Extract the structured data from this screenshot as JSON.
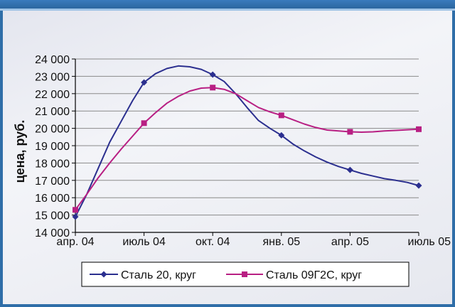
{
  "chart_data": {
    "type": "line",
    "ylabel": "цена, руб.",
    "xlabel": "",
    "title": "",
    "ylim": [
      14000,
      24000
    ],
    "y_ticks": [
      "14 000",
      "15 000",
      "16 000",
      "17 000",
      "18 000",
      "19 000",
      "20 000",
      "21 000",
      "22 000",
      "23 000",
      "24 000"
    ],
    "x_ticks": [
      "апр. 04",
      "июль 04",
      "окт. 04",
      "янв. 05",
      "апр. 05",
      "июль 05"
    ],
    "grid": true,
    "legend_position": "bottom",
    "series": [
      {
        "name": "Сталь 20, круг",
        "color": "#2b2f8f",
        "marker": "diamond",
        "points": [
          {
            "t": 0,
            "v": 14900
          },
          {
            "t": 3,
            "v": 22650
          },
          {
            "t": 6,
            "v": 23100
          },
          {
            "t": 9,
            "v": 19600
          },
          {
            "t": 12,
            "v": 17600
          },
          {
            "t": 15,
            "v": 16700
          }
        ],
        "curve": [
          {
            "t": 0,
            "v": 14900
          },
          {
            "t": 0.5,
            "v": 16200
          },
          {
            "t": 1,
            "v": 17700
          },
          {
            "t": 1.5,
            "v": 19200
          },
          {
            "t": 2,
            "v": 20400
          },
          {
            "t": 2.5,
            "v": 21600
          },
          {
            "t": 3,
            "v": 22650
          },
          {
            "t": 3.5,
            "v": 23150
          },
          {
            "t": 4,
            "v": 23450
          },
          {
            "t": 4.5,
            "v": 23600
          },
          {
            "t": 5,
            "v": 23550
          },
          {
            "t": 5.5,
            "v": 23400
          },
          {
            "t": 6,
            "v": 23100
          },
          {
            "t": 6.5,
            "v": 22700
          },
          {
            "t": 7,
            "v": 22000
          },
          {
            "t": 7.5,
            "v": 21200
          },
          {
            "t": 8,
            "v": 20450
          },
          {
            "t": 8.5,
            "v": 20000
          },
          {
            "t": 9,
            "v": 19600
          },
          {
            "t": 9.5,
            "v": 19100
          },
          {
            "t": 10,
            "v": 18700
          },
          {
            "t": 10.5,
            "v": 18350
          },
          {
            "t": 11,
            "v": 18050
          },
          {
            "t": 11.5,
            "v": 17800
          },
          {
            "t": 12,
            "v": 17600
          },
          {
            "t": 12.5,
            "v": 17400
          },
          {
            "t": 13,
            "v": 17250
          },
          {
            "t": 13.5,
            "v": 17100
          },
          {
            "t": 14,
            "v": 17000
          },
          {
            "t": 14.5,
            "v": 16880
          },
          {
            "t": 15,
            "v": 16700
          }
        ]
      },
      {
        "name": "Сталь 09Г2С, круг",
        "color": "#b81f83",
        "marker": "square",
        "points": [
          {
            "t": 0,
            "v": 15300
          },
          {
            "t": 3,
            "v": 20300
          },
          {
            "t": 6,
            "v": 22350
          },
          {
            "t": 9,
            "v": 20750
          },
          {
            "t": 12,
            "v": 19800
          },
          {
            "t": 15,
            "v": 19950
          }
        ],
        "curve": [
          {
            "t": 0,
            "v": 15300
          },
          {
            "t": 0.5,
            "v": 16200
          },
          {
            "t": 1,
            "v": 17150
          },
          {
            "t": 1.5,
            "v": 18000
          },
          {
            "t": 2,
            "v": 18800
          },
          {
            "t": 2.5,
            "v": 19550
          },
          {
            "t": 3,
            "v": 20300
          },
          {
            "t": 3.5,
            "v": 20900
          },
          {
            "t": 4,
            "v": 21450
          },
          {
            "t": 4.5,
            "v": 21850
          },
          {
            "t": 5,
            "v": 22150
          },
          {
            "t": 5.5,
            "v": 22320
          },
          {
            "t": 6,
            "v": 22350
          },
          {
            "t": 6.5,
            "v": 22250
          },
          {
            "t": 7,
            "v": 22000
          },
          {
            "t": 7.5,
            "v": 21600
          },
          {
            "t": 8,
            "v": 21200
          },
          {
            "t": 8.5,
            "v": 20950
          },
          {
            "t": 9,
            "v": 20750
          },
          {
            "t": 9.5,
            "v": 20500
          },
          {
            "t": 10,
            "v": 20250
          },
          {
            "t": 10.5,
            "v": 20050
          },
          {
            "t": 11,
            "v": 19900
          },
          {
            "t": 11.5,
            "v": 19850
          },
          {
            "t": 12,
            "v": 19800
          },
          {
            "t": 12.5,
            "v": 19780
          },
          {
            "t": 13,
            "v": 19800
          },
          {
            "t": 13.5,
            "v": 19850
          },
          {
            "t": 14,
            "v": 19880
          },
          {
            "t": 14.5,
            "v": 19920
          },
          {
            "t": 15,
            "v": 19950
          }
        ]
      }
    ]
  },
  "colors": {
    "frame": "#2f6ea8",
    "gridline": "#8a8a8a"
  }
}
